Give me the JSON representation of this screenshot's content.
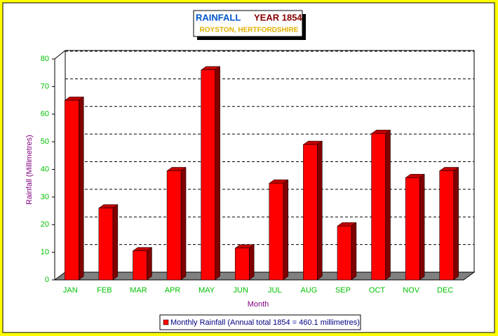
{
  "chart_data": {
    "type": "bar3d",
    "title": [
      "RAINFALL",
      "YEAR 1854"
    ],
    "subtitle": "ROYSTON, HERTFORDSHIRE",
    "y_label": "Rainfall (Millimetres)",
    "x_label": "Month",
    "categories": [
      "JAN",
      "FEB",
      "MAR",
      "APR",
      "MAY",
      "JUN",
      "JUL",
      "AUG",
      "SEP",
      "OCT",
      "NOV",
      "DEC"
    ],
    "series": [
      {
        "name": "Monthly Rainfall (Annual total 1854 = 460.1 millimetres)",
        "color": "#ff0000",
        "values": [
          65,
          26,
          10.5,
          39.5,
          76,
          11.5,
          35,
          49,
          19.5,
          53,
          37,
          39.5
        ]
      }
    ],
    "ylim": [
      0,
      80
    ],
    "yticks": [
      0,
      10,
      20,
      30,
      40,
      50,
      60,
      70,
      80
    ],
    "grid": true
  }
}
